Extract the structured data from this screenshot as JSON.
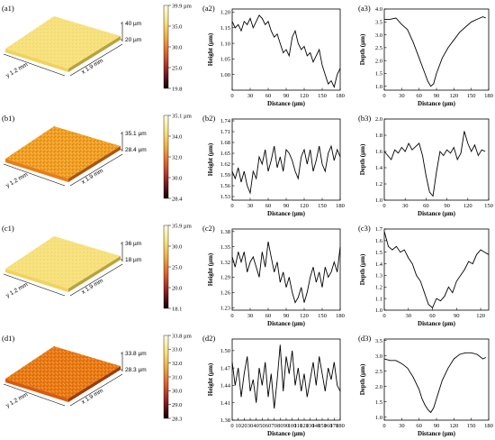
{
  "panels": [
    {
      "row_labels": [
        "(a1)",
        "(a2)",
        "(a3)"
      ],
      "surface": {
        "colorbar_ticks": [
          "39.9 µm",
          "35.0",
          "30.0",
          "25.0",
          "19.8"
        ],
        "ztick_labels": [
          "40 µm",
          "20 µm"
        ],
        "x_axis_label": "x 1.9 mm",
        "y_axis_label": "y 1.2 mm",
        "tone": "light-yellow"
      },
      "height": {
        "chart_data": {
          "type": "line",
          "xlabel": "Distance (µm)",
          "ylabel": "Height (µm)",
          "xlim": [
            0,
            180
          ],
          "ylim": [
            0.95,
            1.21
          ],
          "xticks": [
            0,
            30,
            60,
            90,
            120,
            150,
            180
          ],
          "yticks": [
            1.0,
            1.05,
            1.1,
            1.15,
            1.2
          ],
          "ytick_labels": [
            "1.00",
            "1.05",
            "1.10",
            "1.15",
            "1.20"
          ],
          "x": [
            0,
            5,
            10,
            15,
            20,
            25,
            30,
            35,
            40,
            45,
            50,
            55,
            60,
            65,
            70,
            75,
            80,
            85,
            90,
            95,
            100,
            105,
            110,
            115,
            120,
            125,
            130,
            135,
            140,
            145,
            150,
            155,
            160,
            165,
            170,
            175,
            180
          ],
          "y": [
            1.17,
            1.15,
            1.16,
            1.14,
            1.17,
            1.16,
            1.18,
            1.15,
            1.17,
            1.19,
            1.18,
            1.16,
            1.17,
            1.14,
            1.12,
            1.13,
            1.1,
            1.07,
            1.08,
            1.06,
            1.12,
            1.14,
            1.1,
            1.08,
            1.09,
            1.06,
            1.07,
            1.04,
            1.06,
            1.08,
            1.03,
            1.0,
            0.97,
            0.98,
            0.96,
            1.0,
            1.02
          ]
        }
      },
      "depth": {
        "chart_data": {
          "type": "line",
          "xlabel": "Distance (µm)",
          "ylabel": "Depth (µm)",
          "xlim": [
            0,
            180
          ],
          "ylim": [
            0.85,
            4.0
          ],
          "xticks": [
            0,
            30,
            60,
            90,
            120,
            150,
            180
          ],
          "yticks": [
            1.0,
            1.5,
            2.0,
            2.5,
            3.0,
            3.5,
            4.0
          ],
          "ytick_labels": [
            "1.0",
            "1.5",
            "2.0",
            "2.5",
            "3.0",
            "3.5",
            "4.0"
          ],
          "x": [
            0,
            10,
            20,
            30,
            40,
            50,
            60,
            65,
            70,
            75,
            80,
            85,
            90,
            95,
            100,
            110,
            120,
            130,
            140,
            150,
            160,
            170,
            175
          ],
          "y": [
            3.6,
            3.6,
            3.65,
            3.4,
            3.2,
            2.7,
            2.1,
            1.8,
            1.5,
            1.2,
            1.0,
            1.1,
            1.5,
            1.8,
            2.1,
            2.5,
            2.8,
            3.1,
            3.3,
            3.5,
            3.6,
            3.7,
            3.65
          ]
        }
      }
    },
    {
      "row_labels": [
        "(b1)",
        "(b2)",
        "(b3)"
      ],
      "surface": {
        "colorbar_ticks": [
          "35.1 µm",
          "34.0",
          "32.0",
          "30.0",
          "28.4"
        ],
        "ztick_labels": [
          "35.1 µm",
          "28.4 µm"
        ],
        "x_axis_label": "x 1.9 mm",
        "y_axis_label": "y 1.2 mm",
        "tone": "orange"
      },
      "height": {
        "chart_data": {
          "type": "line",
          "xlabel": "Distance (µm)",
          "ylabel": "Height (µm)",
          "xlim": [
            0,
            180
          ],
          "ylim": [
            1.52,
            1.745
          ],
          "xticks": [
            0,
            30,
            60,
            90,
            120,
            150,
            180
          ],
          "yticks": [
            1.53,
            1.56,
            1.59,
            1.62,
            1.65,
            1.68,
            1.71,
            1.74
          ],
          "ytick_labels": [
            "1.53",
            "1.56",
            "1.59",
            "1.62",
            "1.65",
            "1.68",
            "1.71",
            "1.74"
          ],
          "x": [
            0,
            5,
            10,
            15,
            20,
            25,
            30,
            35,
            40,
            45,
            50,
            55,
            60,
            65,
            70,
            75,
            80,
            85,
            90,
            95,
            100,
            105,
            110,
            115,
            120,
            125,
            130,
            135,
            140,
            145,
            150,
            155,
            160,
            165,
            170,
            175,
            180
          ],
          "y": [
            1.6,
            1.58,
            1.61,
            1.57,
            1.6,
            1.56,
            1.54,
            1.6,
            1.58,
            1.64,
            1.62,
            1.66,
            1.6,
            1.63,
            1.67,
            1.61,
            1.64,
            1.6,
            1.66,
            1.65,
            1.63,
            1.6,
            1.58,
            1.64,
            1.66,
            1.62,
            1.66,
            1.6,
            1.63,
            1.67,
            1.62,
            1.6,
            1.65,
            1.67,
            1.63,
            1.66,
            1.64
          ]
        }
      },
      "depth": {
        "chart_data": {
          "type": "line",
          "xlabel": "Distance (µm)",
          "ylabel": "Depth (µm)",
          "xlim": [
            0,
            150
          ],
          "ylim": [
            1.0,
            2.0
          ],
          "xticks": [
            0,
            30,
            60,
            90,
            120,
            150
          ],
          "yticks": [
            1.0,
            1.2,
            1.4,
            1.6,
            1.8,
            2.0
          ],
          "ytick_labels": [
            "1.0",
            "1.2",
            "1.4",
            "1.6",
            "1.8",
            "2.0"
          ],
          "x": [
            0,
            5,
            10,
            15,
            20,
            25,
            30,
            35,
            40,
            45,
            50,
            55,
            60,
            65,
            70,
            75,
            80,
            85,
            90,
            95,
            100,
            105,
            110,
            115,
            120,
            125,
            130,
            135,
            140,
            145
          ],
          "y": [
            1.6,
            1.55,
            1.5,
            1.62,
            1.58,
            1.65,
            1.6,
            1.7,
            1.62,
            1.66,
            1.7,
            1.55,
            1.3,
            1.1,
            1.05,
            1.35,
            1.6,
            1.55,
            1.62,
            1.58,
            1.65,
            1.5,
            1.58,
            1.85,
            1.7,
            1.6,
            1.68,
            1.55,
            1.62,
            1.6
          ]
        }
      }
    },
    {
      "row_labels": [
        "(c1)",
        "(c2)",
        "(c3)"
      ],
      "surface": {
        "colorbar_ticks": [
          "35.9 µm",
          "30.0",
          "25.0",
          "20.0",
          "18.1"
        ],
        "ztick_labels": [
          "36 µm",
          "18 µm"
        ],
        "x_axis_label": "x 1.9 mm",
        "y_axis_label": "y 1.2 mm",
        "tone": "light-yellow"
      },
      "height": {
        "chart_data": {
          "type": "line",
          "xlabel": "Distance (µm)",
          "ylabel": "Height (µm)",
          "xlim": [
            0,
            180
          ],
          "ylim": [
            1.225,
            1.385
          ],
          "xticks": [
            0,
            30,
            60,
            90,
            120,
            150,
            180
          ],
          "yticks": [
            1.23,
            1.26,
            1.29,
            1.32,
            1.35,
            1.38
          ],
          "ytick_labels": [
            "1.23",
            "1.26",
            "1.29",
            "1.32",
            "1.35",
            "1.38"
          ],
          "x": [
            0,
            5,
            10,
            15,
            20,
            25,
            30,
            35,
            40,
            45,
            50,
            55,
            60,
            65,
            70,
            75,
            80,
            85,
            90,
            95,
            100,
            105,
            110,
            115,
            120,
            125,
            130,
            135,
            140,
            145,
            150,
            155,
            160,
            165,
            170,
            175,
            180
          ],
          "y": [
            1.33,
            1.31,
            1.34,
            1.32,
            1.34,
            1.3,
            1.32,
            1.33,
            1.31,
            1.29,
            1.34,
            1.31,
            1.36,
            1.33,
            1.3,
            1.32,
            1.28,
            1.3,
            1.27,
            1.29,
            1.26,
            1.24,
            1.25,
            1.27,
            1.24,
            1.26,
            1.29,
            1.31,
            1.28,
            1.3,
            1.27,
            1.31,
            1.29,
            1.3,
            1.32,
            1.3,
            1.35
          ]
        }
      },
      "depth": {
        "chart_data": {
          "type": "line",
          "xlabel": "Distance (µm)",
          "ylabel": "Depth (µm)",
          "xlim": [
            0,
            130
          ],
          "ylim": [
            1.0,
            1.7
          ],
          "xticks": [
            0,
            30,
            60,
            90,
            120
          ],
          "yticks": [
            1.0,
            1.1,
            1.2,
            1.3,
            1.4,
            1.5,
            1.6,
            1.7
          ],
          "ytick_labels": [
            "1.0",
            "1.1",
            "1.2",
            "1.3",
            "1.4",
            "1.5",
            "1.6",
            "1.7"
          ],
          "x": [
            0,
            5,
            10,
            15,
            20,
            25,
            30,
            35,
            40,
            45,
            50,
            55,
            60,
            65,
            70,
            75,
            80,
            85,
            90,
            95,
            100,
            105,
            110,
            115,
            120,
            125,
            130
          ],
          "y": [
            1.68,
            1.55,
            1.52,
            1.55,
            1.5,
            1.52,
            1.45,
            1.4,
            1.3,
            1.25,
            1.15,
            1.05,
            1.02,
            1.1,
            1.08,
            1.12,
            1.2,
            1.15,
            1.25,
            1.3,
            1.35,
            1.42,
            1.4,
            1.48,
            1.52,
            1.5,
            1.48
          ]
        }
      }
    },
    {
      "row_labels": [
        "(d1)",
        "(d2)",
        "(d3)"
      ],
      "surface": {
        "colorbar_ticks": [
          "33.8 µm",
          "33.0",
          "32.0",
          "31.0",
          "30.0",
          "29.0",
          "28.3"
        ],
        "ztick_labels": [
          "33.8 µm",
          "28.3 µm"
        ],
        "x_axis_label": "x 1.9 mm",
        "y_axis_label": "y 1.2 mm",
        "tone": "dark-orange"
      },
      "height": {
        "chart_data": {
          "type": "line",
          "xlabel": "Distance (µm)",
          "ylabel": "Height (µm)",
          "xlim": [
            0,
            180
          ],
          "ylim": [
            1.38,
            1.52
          ],
          "xticks": [
            0,
            10,
            20,
            30,
            40,
            50,
            60,
            70,
            80,
            90,
            100,
            110,
            120,
            130,
            140,
            150,
            160,
            170,
            180
          ],
          "yticks": [
            1.38,
            1.41,
            1.44,
            1.47,
            1.5
          ],
          "ytick_labels": [
            "1.38",
            "1.41",
            "1.44",
            "1.47",
            "1.50"
          ],
          "x": [
            0,
            5,
            10,
            15,
            20,
            25,
            30,
            35,
            40,
            45,
            50,
            55,
            60,
            65,
            70,
            75,
            80,
            85,
            90,
            95,
            100,
            105,
            110,
            115,
            120,
            125,
            130,
            135,
            140,
            145,
            150,
            155,
            160,
            165,
            170,
            175,
            180
          ],
          "y": [
            1.48,
            1.44,
            1.47,
            1.42,
            1.46,
            1.49,
            1.43,
            1.45,
            1.41,
            1.47,
            1.44,
            1.48,
            1.42,
            1.46,
            1.4,
            1.45,
            1.51,
            1.43,
            1.49,
            1.46,
            1.5,
            1.44,
            1.47,
            1.43,
            1.46,
            1.42,
            1.45,
            1.48,
            1.44,
            1.49,
            1.46,
            1.43,
            1.47,
            1.45,
            1.48,
            1.44,
            1.43
          ]
        }
      },
      "depth": {
        "chart_data": {
          "type": "line",
          "xlabel": "Distance (µm)",
          "ylabel": "Depth (µm)",
          "xlim": [
            0,
            180
          ],
          "ylim": [
            0.9,
            3.55
          ],
          "xticks": [
            0,
            30,
            60,
            90,
            120,
            150,
            180
          ],
          "yticks": [
            1.0,
            1.5,
            2.0,
            2.5,
            3.0,
            3.5
          ],
          "ytick_labels": [
            "1.0",
            "1.5",
            "2.0",
            "2.5",
            "3.0",
            "3.5"
          ],
          "x": [
            0,
            10,
            20,
            30,
            40,
            50,
            60,
            65,
            70,
            75,
            80,
            85,
            90,
            95,
            100,
            110,
            120,
            130,
            140,
            150,
            160,
            170,
            175
          ],
          "y": [
            2.9,
            2.85,
            2.85,
            2.75,
            2.6,
            2.3,
            1.9,
            1.6,
            1.4,
            1.25,
            1.15,
            1.3,
            1.6,
            1.9,
            2.2,
            2.6,
            2.9,
            3.05,
            3.1,
            3.1,
            3.05,
            2.9,
            2.95
          ]
        }
      }
    }
  ]
}
